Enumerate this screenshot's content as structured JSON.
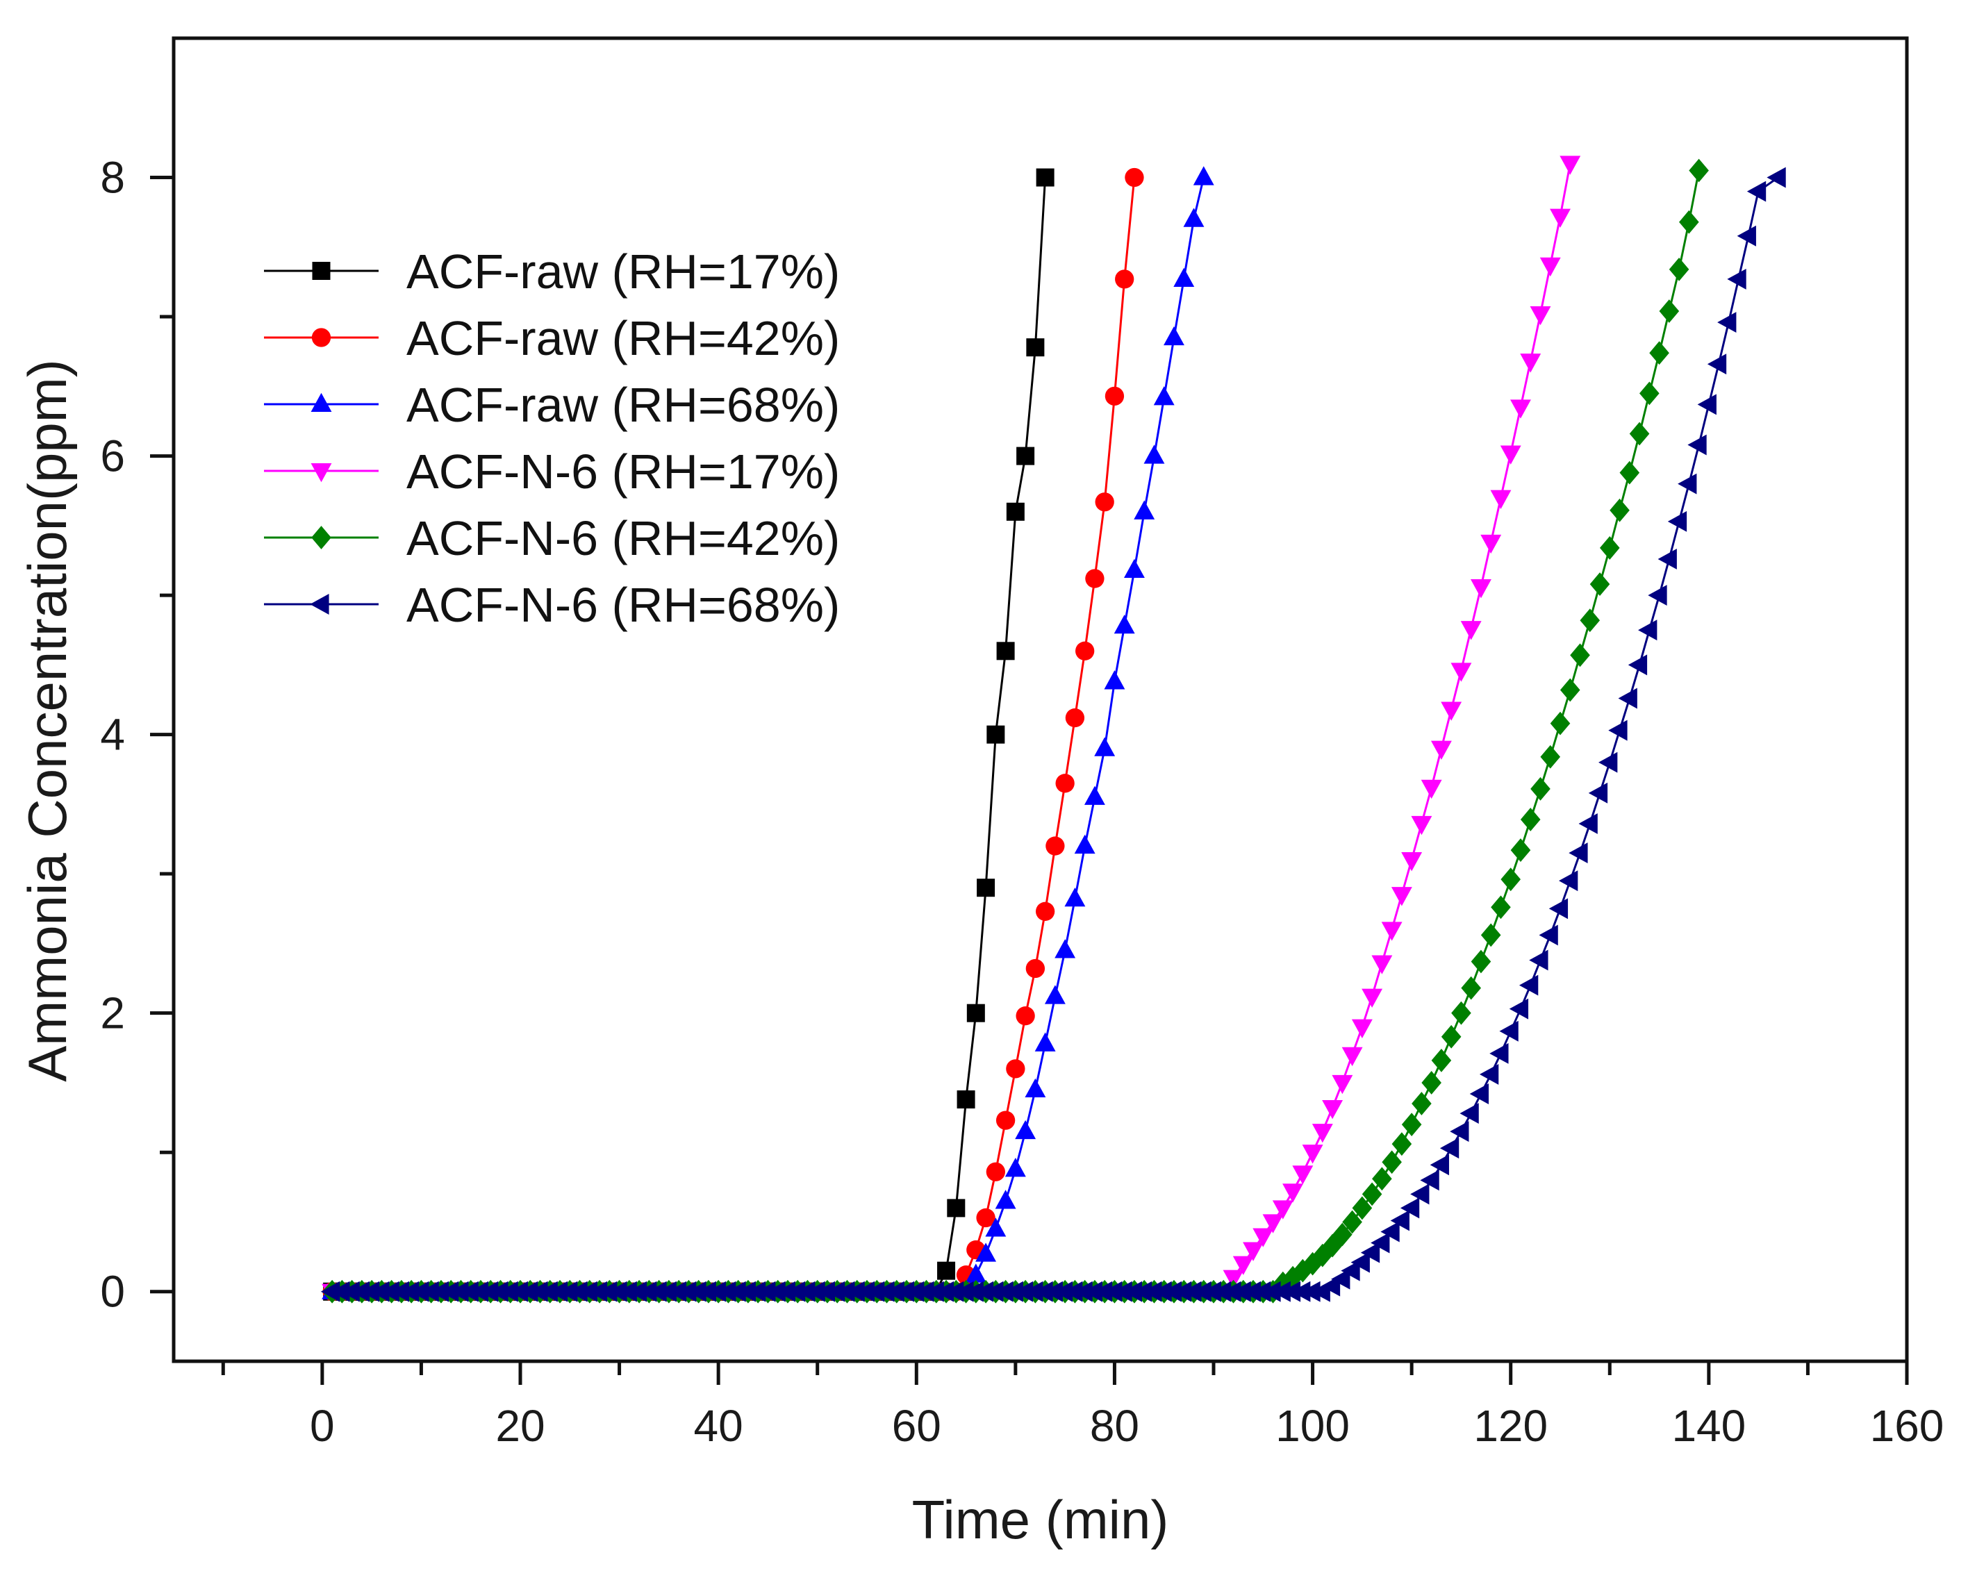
{
  "chart_data": {
    "type": "line",
    "title": "",
    "xlabel": "Time (min)",
    "ylabel": "Ammonia Concentration(ppm)",
    "xlim": [
      -15,
      160
    ],
    "ylim": [
      -0.5,
      9
    ],
    "xticks": [
      0,
      20,
      40,
      60,
      80,
      100,
      120,
      140,
      160
    ],
    "xtick_labels": [
      "0",
      "20",
      "40",
      "60",
      "80",
      "100",
      "120",
      "140",
      "160"
    ],
    "yticks": [
      0,
      2,
      4,
      6,
      8
    ],
    "ytick_labels": [
      "0",
      "2",
      "4",
      "6",
      "8"
    ],
    "grid": false,
    "legend_position": "top-left",
    "series": [
      {
        "name": "ACF-raw (RH=17%)",
        "color": "#000000",
        "marker": "square",
        "points": [
          [
            63,
            0.15
          ],
          [
            64,
            0.6
          ],
          [
            65,
            1.38
          ],
          [
            66,
            2.0
          ],
          [
            67,
            2.9
          ],
          [
            68,
            4.0
          ],
          [
            69,
            4.6
          ],
          [
            70,
            5.6
          ],
          [
            71,
            6.0
          ],
          [
            72,
            6.78
          ],
          [
            73,
            8.0
          ]
        ]
      },
      {
        "name": "ACF-raw (RH=42%)",
        "color": "#ff0000",
        "marker": "circle",
        "points": [
          [
            65,
            0.12
          ],
          [
            66,
            0.3
          ],
          [
            67,
            0.53
          ],
          [
            68,
            0.86
          ],
          [
            69,
            1.23
          ],
          [
            70,
            1.6
          ],
          [
            71,
            1.98
          ],
          [
            72,
            2.32
          ],
          [
            73,
            2.73
          ],
          [
            74,
            3.2
          ],
          [
            75,
            3.65
          ],
          [
            76,
            4.12
          ],
          [
            77,
            4.6
          ],
          [
            78,
            5.12
          ],
          [
            79,
            5.67
          ],
          [
            80,
            6.43
          ],
          [
            81,
            7.27
          ],
          [
            82,
            8.0
          ]
        ]
      },
      {
        "name": "ACF-raw (RH=68%)",
        "color": "#0000ff",
        "marker": "triangle-up",
        "points": [
          [
            66,
            0.12
          ],
          [
            67,
            0.27
          ],
          [
            68,
            0.45
          ],
          [
            69,
            0.65
          ],
          [
            70,
            0.88
          ],
          [
            71,
            1.15
          ],
          [
            72,
            1.45
          ],
          [
            73,
            1.78
          ],
          [
            74,
            2.12
          ],
          [
            75,
            2.45
          ],
          [
            76,
            2.82
          ],
          [
            77,
            3.2
          ],
          [
            78,
            3.55
          ],
          [
            79,
            3.9
          ],
          [
            80,
            4.38
          ],
          [
            81,
            4.78
          ],
          [
            82,
            5.18
          ],
          [
            83,
            5.6
          ],
          [
            84,
            6.0
          ],
          [
            85,
            6.42
          ],
          [
            86,
            6.85
          ],
          [
            87,
            7.27
          ],
          [
            88,
            7.7
          ],
          [
            89,
            8.0
          ]
        ]
      },
      {
        "name": "ACF-N-6 (RH=17%)",
        "color": "#ff00ff",
        "marker": "triangle-down",
        "points": [
          [
            92,
            0.1
          ],
          [
            93,
            0.2
          ],
          [
            94,
            0.3
          ],
          [
            95,
            0.4
          ],
          [
            96,
            0.5
          ],
          [
            97,
            0.6
          ],
          [
            98,
            0.72
          ],
          [
            99,
            0.85
          ],
          [
            100,
            1.0
          ],
          [
            101,
            1.15
          ],
          [
            102,
            1.32
          ],
          [
            103,
            1.5
          ],
          [
            104,
            1.7
          ],
          [
            105,
            1.9
          ],
          [
            106,
            2.12
          ],
          [
            107,
            2.36
          ],
          [
            108,
            2.6
          ],
          [
            109,
            2.85
          ],
          [
            110,
            3.1
          ],
          [
            111,
            3.36
          ],
          [
            112,
            3.62
          ],
          [
            113,
            3.9
          ],
          [
            114,
            4.18
          ],
          [
            115,
            4.46
          ],
          [
            116,
            4.76
          ],
          [
            117,
            5.06
          ],
          [
            118,
            5.38
          ],
          [
            119,
            5.7
          ],
          [
            120,
            6.02
          ],
          [
            121,
            6.35
          ],
          [
            122,
            6.68
          ],
          [
            123,
            7.02
          ],
          [
            124,
            7.37
          ],
          [
            125,
            7.72
          ],
          [
            126,
            8.1
          ]
        ]
      },
      {
        "name": "ACF-N-6 (RH=42%)",
        "color": "#008000",
        "marker": "diamond",
        "points": [
          [
            97,
            0.06
          ],
          [
            98,
            0.1
          ],
          [
            99,
            0.15
          ],
          [
            100,
            0.2
          ],
          [
            101,
            0.26
          ],
          [
            102,
            0.33
          ],
          [
            103,
            0.41
          ],
          [
            104,
            0.5
          ],
          [
            105,
            0.6
          ],
          [
            106,
            0.7
          ],
          [
            107,
            0.81
          ],
          [
            108,
            0.93
          ],
          [
            109,
            1.06
          ],
          [
            110,
            1.2
          ],
          [
            111,
            1.35
          ],
          [
            112,
            1.5
          ],
          [
            113,
            1.66
          ],
          [
            114,
            1.83
          ],
          [
            115,
            2.0
          ],
          [
            116,
            2.18
          ],
          [
            117,
            2.37
          ],
          [
            118,
            2.56
          ],
          [
            119,
            2.76
          ],
          [
            120,
            2.96
          ],
          [
            121,
            3.17
          ],
          [
            122,
            3.39
          ],
          [
            123,
            3.61
          ],
          [
            124,
            3.84
          ],
          [
            125,
            4.08
          ],
          [
            126,
            4.32
          ],
          [
            127,
            4.57
          ],
          [
            128,
            4.82
          ],
          [
            129,
            5.08
          ],
          [
            130,
            5.34
          ],
          [
            131,
            5.61
          ],
          [
            132,
            5.88
          ],
          [
            133,
            6.16
          ],
          [
            134,
            6.45
          ],
          [
            135,
            6.74
          ],
          [
            136,
            7.04
          ],
          [
            137,
            7.34
          ],
          [
            138,
            7.68
          ],
          [
            139,
            8.05
          ]
        ]
      },
      {
        "name": "ACF-N-6 (RH=68%)",
        "color": "#000080",
        "marker": "triangle-left",
        "points": [
          [
            102,
            0.04
          ],
          [
            103,
            0.09
          ],
          [
            104,
            0.15
          ],
          [
            105,
            0.21
          ],
          [
            106,
            0.28
          ],
          [
            107,
            0.35
          ],
          [
            108,
            0.43
          ],
          [
            109,
            0.51
          ],
          [
            110,
            0.6
          ],
          [
            111,
            0.7
          ],
          [
            112,
            0.8
          ],
          [
            113,
            0.91
          ],
          [
            114,
            1.03
          ],
          [
            115,
            1.15
          ],
          [
            116,
            1.28
          ],
          [
            117,
            1.42
          ],
          [
            118,
            1.56
          ],
          [
            119,
            1.71
          ],
          [
            120,
            1.87
          ],
          [
            121,
            2.03
          ],
          [
            122,
            2.2
          ],
          [
            123,
            2.38
          ],
          [
            124,
            2.56
          ],
          [
            125,
            2.75
          ],
          [
            126,
            2.95
          ],
          [
            127,
            3.15
          ],
          [
            128,
            3.36
          ],
          [
            129,
            3.58
          ],
          [
            130,
            3.8
          ],
          [
            131,
            4.03
          ],
          [
            132,
            4.26
          ],
          [
            133,
            4.5
          ],
          [
            134,
            4.75
          ],
          [
            135,
            5.0
          ],
          [
            136,
            5.26
          ],
          [
            137,
            5.53
          ],
          [
            138,
            5.8
          ],
          [
            139,
            6.08
          ],
          [
            140,
            6.37
          ],
          [
            141,
            6.66
          ],
          [
            142,
            6.96
          ],
          [
            143,
            7.27
          ],
          [
            144,
            7.58
          ],
          [
            145,
            7.9
          ],
          [
            147,
            8.0
          ]
        ]
      }
    ],
    "baseline": {
      "description_y": 0,
      "x_start": 1,
      "x_step": 1
    }
  }
}
